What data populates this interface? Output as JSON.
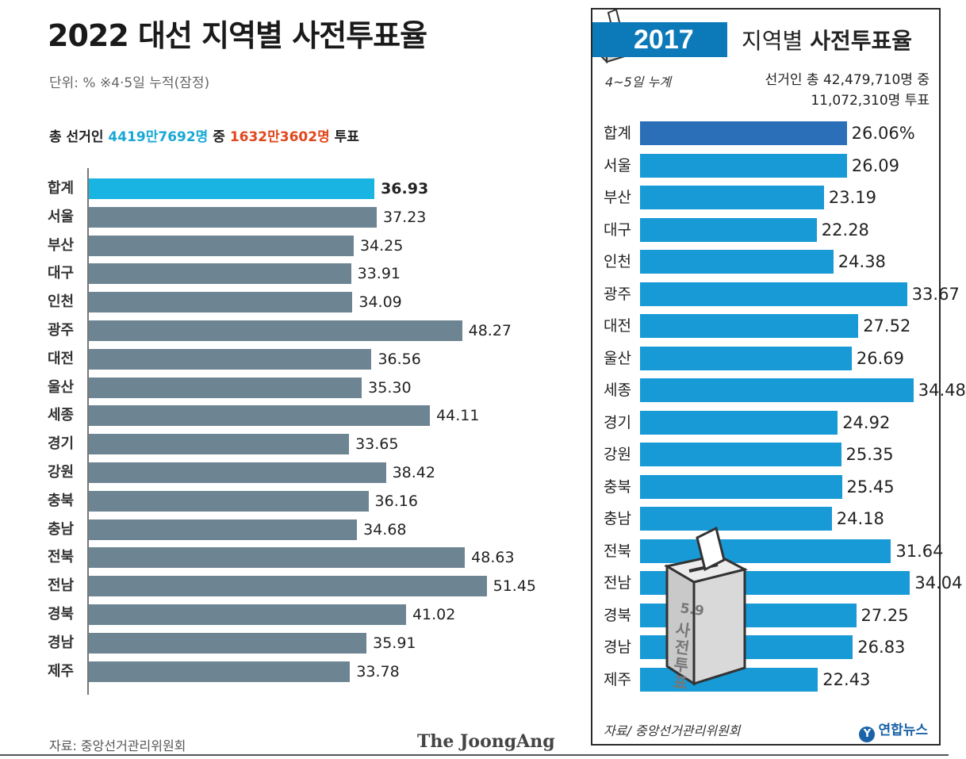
{
  "left": {
    "title": "2022 대선 지역별 사전투표율",
    "unit": "단위: %   ※4·5일 누적(잠정)",
    "summary": {
      "prefix": "총 선거인 ",
      "electorate": "4419만7692명",
      "middle": " 중 ",
      "voted": "1632만3602명",
      "suffix": " 투표"
    },
    "source": "자료: 중앙선거관리위원회",
    "brand": "The JoongAng",
    "colors": {
      "total": "#1ab4e2",
      "region": "#6d8592"
    }
  },
  "right": {
    "year": "2017",
    "title_regular": "지역별 ",
    "title_bold": "사전투표율",
    "cumulative": "4~5일 누계",
    "voters_line1": "선거인 총 42,479,710명 중",
    "voters_line2": "11,072,310명 투표",
    "ballot_date": "5.9",
    "ballot_text": "사전투표",
    "source": "자료/ 중앙선거관리위원회",
    "brand": "연합뉴스",
    "colors": {
      "total": "#2a6fb8",
      "region": "#179ad6",
      "band": "#0c7ab8"
    }
  },
  "chart_data": [
    {
      "type": "bar",
      "orientation": "horizontal",
      "title": "2022 대선 지역별 사전투표율",
      "unit": "%",
      "categories": [
        "합계",
        "서울",
        "부산",
        "대구",
        "인천",
        "광주",
        "대전",
        "울산",
        "세종",
        "경기",
        "강원",
        "충북",
        "충남",
        "전북",
        "전남",
        "경북",
        "경남",
        "제주"
      ],
      "values": [
        36.93,
        37.23,
        34.25,
        33.91,
        34.09,
        48.27,
        36.56,
        35.3,
        44.11,
        33.65,
        38.42,
        36.16,
        34.68,
        48.63,
        51.45,
        41.02,
        35.91,
        33.78
      ],
      "labels": [
        "36.93",
        "37.23",
        "34.25",
        "33.91",
        "34.09",
        "48.27",
        "36.56",
        "35.30",
        "44.11",
        "33.65",
        "38.42",
        "36.16",
        "34.68",
        "48.63",
        "51.45",
        "41.02",
        "35.91",
        "33.78"
      ],
      "xlim": [
        0,
        60
      ]
    },
    {
      "type": "bar",
      "orientation": "horizontal",
      "title": "2017 지역별 사전투표율",
      "unit": "%",
      "categories": [
        "합계",
        "서울",
        "부산",
        "대구",
        "인천",
        "광주",
        "대전",
        "울산",
        "세종",
        "경기",
        "강원",
        "충북",
        "충남",
        "전북",
        "전남",
        "경북",
        "경남",
        "제주"
      ],
      "values": [
        26.06,
        26.09,
        23.19,
        22.28,
        24.38,
        33.67,
        27.52,
        26.69,
        34.48,
        24.92,
        25.35,
        25.45,
        24.18,
        31.64,
        34.04,
        27.25,
        26.83,
        22.43
      ],
      "labels": [
        "26.06%",
        "26.09",
        "23.19",
        "22.28",
        "24.38",
        "33.67",
        "27.52",
        "26.69",
        "34.48",
        "24.92",
        "25.35",
        "25.45",
        "24.18",
        "31.64",
        "34.04",
        "27.25",
        "26.83",
        "22.43"
      ],
      "xlim": [
        0,
        40
      ]
    }
  ]
}
